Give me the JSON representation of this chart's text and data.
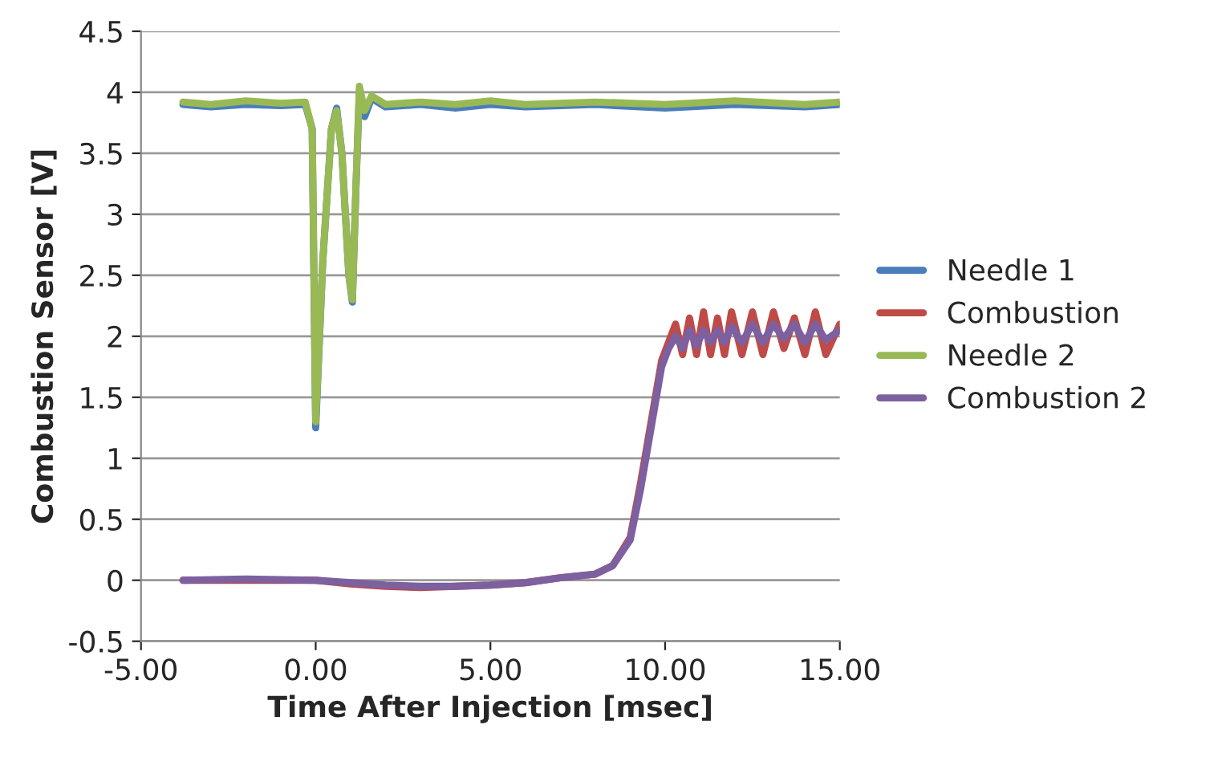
{
  "chart_data": {
    "type": "line",
    "xlabel": "Time After Injection [msec]",
    "ylabel": "Combustion Sensor [V]",
    "xlim": [
      -5,
      15
    ],
    "xticks": [
      {
        "value": -5,
        "label": "-5.00"
      },
      {
        "value": 0,
        "label": "0.00"
      },
      {
        "value": 5,
        "label": "5.00"
      },
      {
        "value": 10,
        "label": "10.00"
      },
      {
        "value": 15,
        "label": "15.00"
      }
    ],
    "ylim": [
      -0.5,
      4.5
    ],
    "yticks": [
      -0.5,
      0,
      0.5,
      1,
      1.5,
      2,
      2.5,
      3,
      3.5,
      4,
      4.5
    ],
    "grid": "y",
    "legend": "right",
    "marker": "none",
    "line_style": "solid",
    "series": [
      {
        "name": "Needle 1",
        "color": "#4a7ebb",
        "x": [
          -3.8,
          -3,
          -2,
          -1,
          -0.3,
          -0.1,
          0,
          0.2,
          0.45,
          0.6,
          0.75,
          0.95,
          1.05,
          1.15,
          1.25,
          1.4,
          1.6,
          2,
          3,
          4,
          5,
          6,
          8,
          10,
          12,
          14,
          15
        ],
        "values": [
          3.9,
          3.88,
          3.9,
          3.89,
          3.9,
          3.7,
          1.25,
          2.6,
          3.7,
          3.87,
          3.5,
          2.5,
          2.28,
          3.2,
          4.0,
          3.8,
          3.95,
          3.88,
          3.9,
          3.87,
          3.9,
          3.88,
          3.9,
          3.87,
          3.9,
          3.88,
          3.9
        ]
      },
      {
        "name": "Combustion",
        "color": "#be4b48",
        "x": [
          -3.8,
          -2,
          0,
          1,
          2,
          3,
          4,
          5,
          6,
          7,
          8,
          8.5,
          9,
          9.3,
          9.6,
          9.9,
          10.1,
          10.3,
          10.5,
          10.7,
          10.9,
          11.1,
          11.3,
          11.5,
          11.7,
          11.9,
          12.2,
          12.5,
          12.8,
          13.1,
          13.4,
          13.7,
          14,
          14.3,
          14.6,
          15
        ],
        "values": [
          0,
          0,
          0,
          -0.03,
          -0.05,
          -0.06,
          -0.05,
          -0.04,
          -0.02,
          0.02,
          0.05,
          0.12,
          0.35,
          0.8,
          1.3,
          1.8,
          1.95,
          2.1,
          1.85,
          2.15,
          1.85,
          2.2,
          1.85,
          2.15,
          1.85,
          2.2,
          1.85,
          2.2,
          1.85,
          2.2,
          1.9,
          2.15,
          1.85,
          2.2,
          1.85,
          2.1
        ]
      },
      {
        "name": "Needle 2",
        "color": "#98b954",
        "x": [
          -3.8,
          -3,
          -2,
          -1,
          -0.3,
          -0.1,
          0,
          0.2,
          0.45,
          0.6,
          0.75,
          0.95,
          1.05,
          1.15,
          1.25,
          1.4,
          1.6,
          2,
          3,
          4,
          5,
          6,
          8,
          10,
          12,
          14,
          15
        ],
        "values": [
          3.92,
          3.9,
          3.93,
          3.91,
          3.92,
          3.7,
          1.3,
          2.6,
          3.7,
          3.85,
          3.5,
          2.5,
          2.3,
          3.2,
          4.05,
          3.85,
          3.97,
          3.9,
          3.92,
          3.9,
          3.93,
          3.9,
          3.92,
          3.9,
          3.93,
          3.9,
          3.92
        ]
      },
      {
        "name": "Combustion 2",
        "color": "#7d60a0",
        "x": [
          -3.8,
          -2,
          0,
          1,
          2,
          3,
          4,
          5,
          6,
          7,
          8,
          8.5,
          9,
          9.3,
          9.6,
          9.9,
          10.1,
          10.3,
          10.5,
          10.7,
          10.9,
          11.1,
          11.3,
          11.5,
          11.7,
          11.9,
          12.2,
          12.5,
          12.8,
          13.1,
          13.4,
          13.7,
          14,
          14.3,
          14.6,
          15
        ],
        "values": [
          0,
          0.01,
          0,
          -0.02,
          -0.04,
          -0.05,
          -0.05,
          -0.04,
          -0.02,
          0.02,
          0.05,
          0.12,
          0.33,
          0.75,
          1.25,
          1.75,
          1.9,
          2.0,
          1.9,
          2.05,
          1.92,
          2.05,
          1.95,
          2.05,
          1.95,
          2.08,
          1.95,
          2.1,
          1.95,
          2.1,
          1.98,
          2.1,
          1.95,
          2.1,
          1.97,
          2.05
        ]
      }
    ]
  }
}
